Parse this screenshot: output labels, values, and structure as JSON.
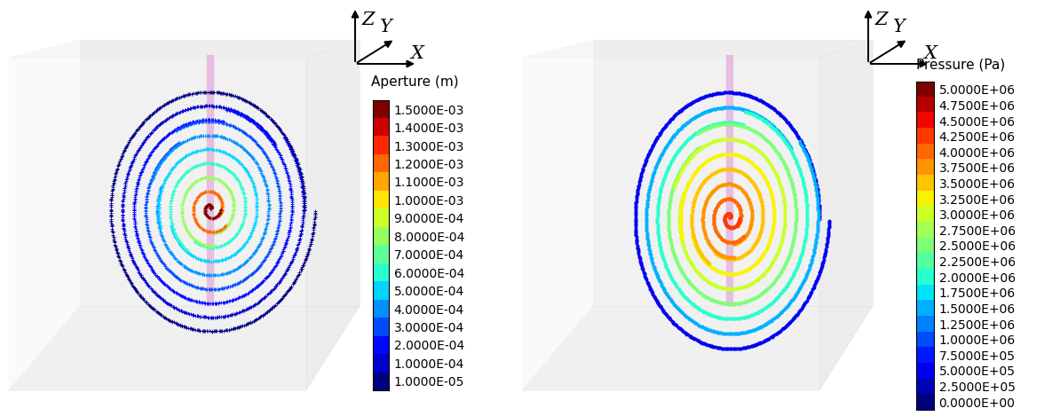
{
  "chart_data": [
    {
      "type": "scatter",
      "axis_labels": [
        "Z",
        "Y",
        "X"
      ],
      "colorbar_title": "Aperture (m)",
      "colorbar_ticks": [
        {
          "value": 1e-05,
          "label": "1.0000E-05"
        },
        {
          "value": 0.0001,
          "label": "1.0000E-04"
        },
        {
          "value": 0.0002,
          "label": "2.0000E-04"
        },
        {
          "value": 0.0003,
          "label": "3.0000E-04"
        },
        {
          "value": 0.0004,
          "label": "4.0000E-04"
        },
        {
          "value": 0.0005,
          "label": "5.0000E-04"
        },
        {
          "value": 0.0006,
          "label": "6.0000E-04"
        },
        {
          "value": 0.0007,
          "label": "7.0000E-04"
        },
        {
          "value": 0.0008,
          "label": "8.0000E-04"
        },
        {
          "value": 0.0009,
          "label": "9.0000E-04"
        },
        {
          "value": 0.001,
          "label": "1.0000E-03"
        },
        {
          "value": 0.0011,
          "label": "1.1000E-03"
        },
        {
          "value": 0.0012,
          "label": "1.2000E-03"
        },
        {
          "value": 0.0013,
          "label": "1.3000E-03"
        },
        {
          "value": 0.0014,
          "label": "1.4000E-03"
        },
        {
          "value": 0.0015,
          "label": "1.5000E-03"
        }
      ],
      "values": [
        0.0015,
        0.0012,
        0.0008,
        0.0006,
        0.0005,
        0.0004,
        0.0003,
        0.0002,
        0.0001,
        5e-05
      ]
    },
    {
      "type": "scatter",
      "axis_labels": [
        "Z",
        "Y",
        "X"
      ],
      "colorbar_title": "Pressure (Pa)",
      "colorbar_ticks": [
        {
          "value": 0,
          "label": "0.0000E+00"
        },
        {
          "value": 250000,
          "label": "2.5000E+05"
        },
        {
          "value": 500000,
          "label": "5.0000E+05"
        },
        {
          "value": 750000,
          "label": "7.5000E+05"
        },
        {
          "value": 1000000,
          "label": "1.0000E+06"
        },
        {
          "value": 1250000,
          "label": "1.2500E+06"
        },
        {
          "value": 1500000,
          "label": "1.5000E+06"
        },
        {
          "value": 1750000,
          "label": "1.7500E+06"
        },
        {
          "value": 2000000,
          "label": "2.0000E+06"
        },
        {
          "value": 2250000,
          "label": "2.2500E+06"
        },
        {
          "value": 2500000,
          "label": "2.5000E+06"
        },
        {
          "value": 2750000,
          "label": "2.7500E+06"
        },
        {
          "value": 3000000,
          "label": "3.0000E+06"
        },
        {
          "value": 3250000,
          "label": "3.2500E+06"
        },
        {
          "value": 3500000,
          "label": "3.5000E+06"
        },
        {
          "value": 3750000,
          "label": "3.7500E+06"
        },
        {
          "value": 4000000,
          "label": "4.0000E+06"
        },
        {
          "value": 4250000,
          "label": "4.2500E+06"
        },
        {
          "value": 4500000,
          "label": "4.5000E+06"
        },
        {
          "value": 4750000,
          "label": "4.7500E+06"
        },
        {
          "value": 5000000,
          "label": "5.0000E+06"
        }
      ],
      "values": [
        4250000,
        4000000,
        3750000,
        3500000,
        3250000,
        3000000,
        2500000,
        2000000,
        1500000,
        500000
      ]
    }
  ]
}
